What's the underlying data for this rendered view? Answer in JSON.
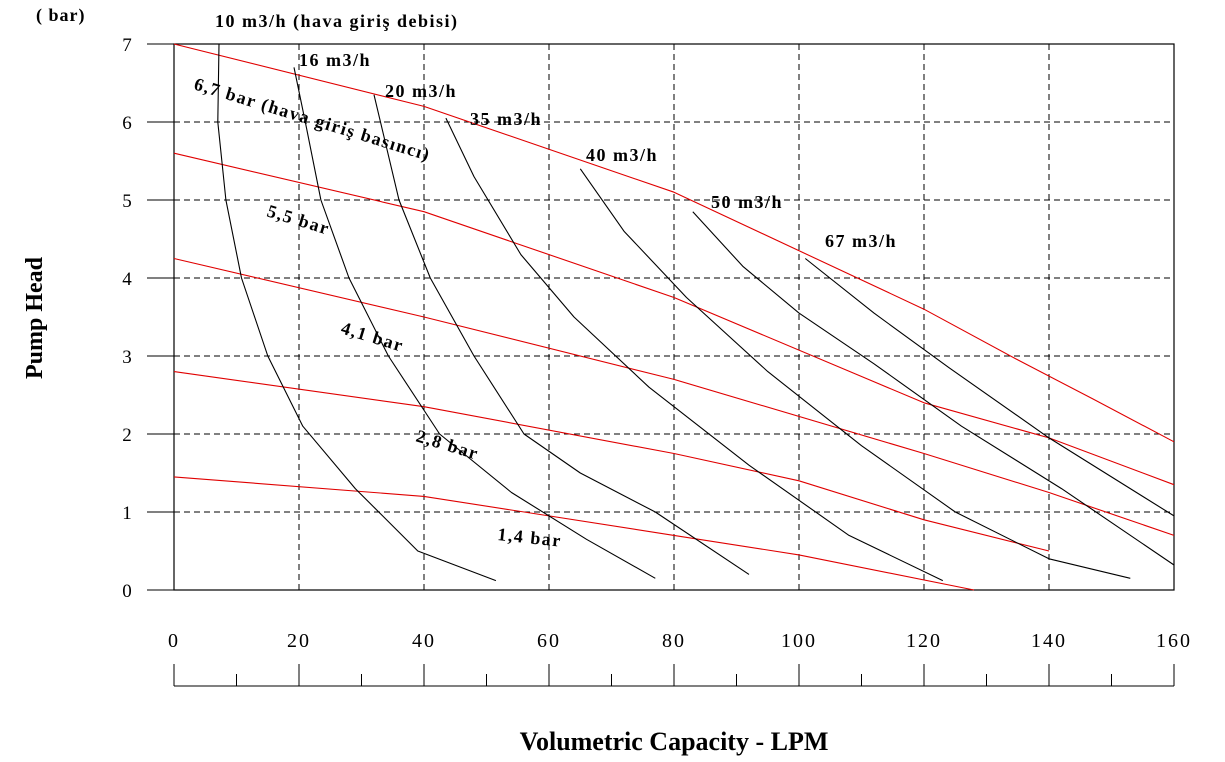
{
  "chart_data": {
    "type": "line",
    "unit_label": "( bar)",
    "ylabel": "Pump Head",
    "xlabel": "Volumetric Capacity - LPM",
    "xlim": [
      0,
      160
    ],
    "ylim": [
      0,
      7
    ],
    "x_ticks": [
      "0",
      "20",
      "40",
      "60",
      "80",
      "100",
      "120",
      "140",
      "160"
    ],
    "y_ticks": [
      "0",
      "1",
      "2",
      "3",
      "4",
      "5",
      "6",
      "7"
    ],
    "grid": true,
    "air_flow_curves": [
      {
        "name": "10 m3/h (hava giriş debisi)",
        "color": "#000000",
        "points": [
          [
            7.2,
            7
          ],
          [
            7.0,
            6
          ],
          [
            8.3,
            5
          ],
          [
            10.8,
            4
          ],
          [
            15,
            3
          ],
          [
            20.6,
            2.1
          ],
          [
            29,
            1.3
          ],
          [
            39,
            0.5
          ],
          [
            51.5,
            0.12
          ]
        ]
      },
      {
        "name": "16 m3/h",
        "color": "#000000",
        "points": [
          [
            19.2,
            6.7
          ],
          [
            21,
            6
          ],
          [
            23.5,
            5
          ],
          [
            28,
            4
          ],
          [
            34.3,
            3
          ],
          [
            42.5,
            2
          ],
          [
            54,
            1.25
          ],
          [
            66,
            0.65
          ],
          [
            77,
            0.15
          ]
        ]
      },
      {
        "name": "20 m3/h",
        "color": "#000000",
        "points": [
          [
            32,
            6.35
          ],
          [
            36,
            5
          ],
          [
            41,
            4
          ],
          [
            48,
            3
          ],
          [
            56,
            2
          ],
          [
            65,
            1.5
          ],
          [
            77,
            1
          ],
          [
            92,
            0.2
          ]
        ]
      },
      {
        "name": "35 m3/h",
        "color": "#000000",
        "points": [
          [
            43.5,
            6.05
          ],
          [
            48,
            5.3
          ],
          [
            55.5,
            4.3
          ],
          [
            64,
            3.5
          ],
          [
            76,
            2.6
          ],
          [
            92,
            1.6
          ],
          [
            108,
            0.7
          ],
          [
            123,
            0.12
          ]
        ]
      },
      {
        "name": "40 m3/h",
        "color": "#000000",
        "points": [
          [
            65,
            5.4
          ],
          [
            72,
            4.6
          ],
          [
            82,
            3.75
          ],
          [
            95,
            2.8
          ],
          [
            110,
            1.85
          ],
          [
            125,
            1.0
          ],
          [
            140,
            0.4
          ],
          [
            153,
            0.15
          ]
        ]
      },
      {
        "name": "50 m3/h",
        "color": "#000000",
        "points": [
          [
            83,
            4.85
          ],
          [
            91,
            4.15
          ],
          [
            100,
            3.55
          ],
          [
            112,
            2.9
          ],
          [
            126,
            2.1
          ],
          [
            142,
            1.3
          ],
          [
            160,
            0.32
          ]
        ]
      },
      {
        "name": "67 m3/h",
        "color": "#000000",
        "points": [
          [
            101,
            4.25
          ],
          [
            112,
            3.55
          ],
          [
            124,
            2.85
          ],
          [
            140,
            1.95
          ],
          [
            160,
            0.95
          ]
        ]
      }
    ],
    "air_pressure_curves": [
      {
        "name": "6,7 bar (hava giriş basıncı)",
        "color": "#e00000",
        "points": [
          [
            0,
            7.0
          ],
          [
            40,
            6.2
          ],
          [
            80,
            5.1
          ],
          [
            120,
            3.6
          ],
          [
            135,
            2.95
          ],
          [
            147,
            2.45
          ],
          [
            160,
            1.9
          ]
        ]
      },
      {
        "name": "5,5 bar",
        "color": "#e00000",
        "points": [
          [
            0,
            5.6
          ],
          [
            40,
            4.85
          ],
          [
            80,
            3.75
          ],
          [
            120,
            2.4
          ],
          [
            140,
            1.95
          ],
          [
            160,
            1.35
          ]
        ]
      },
      {
        "name": "4,1 bar",
        "color": "#e00000",
        "points": [
          [
            0,
            4.25
          ],
          [
            40,
            3.5
          ],
          [
            80,
            2.7
          ],
          [
            120,
            1.75
          ],
          [
            140,
            1.25
          ],
          [
            160,
            0.7
          ]
        ]
      },
      {
        "name": "2,8 bar",
        "color": "#e00000",
        "points": [
          [
            0,
            2.8
          ],
          [
            40,
            2.35
          ],
          [
            80,
            1.75
          ],
          [
            100,
            1.4
          ],
          [
            120,
            0.9
          ],
          [
            140,
            0.5
          ]
        ]
      },
      {
        "name": "1,4 bar",
        "color": "#e00000",
        "points": [
          [
            0,
            1.45
          ],
          [
            40,
            1.2
          ],
          [
            80,
            0.7
          ],
          [
            100,
            0.45
          ],
          [
            128,
            0.0
          ]
        ]
      }
    ],
    "annotations": [
      {
        "text": "10 m3/h (hava giriş debisi)",
        "series": "10 m3/h"
      },
      {
        "text": "16 m3/h",
        "series": "16 m3/h"
      },
      {
        "text": "20 m3/h",
        "series": "20 m3/h"
      },
      {
        "text": "35 m3/h",
        "series": "35 m3/h"
      },
      {
        "text": "40 m3/h",
        "series": "40 m3/h"
      },
      {
        "text": "50 m3/h",
        "series": "50 m3/h"
      },
      {
        "text": "67 m3/h",
        "series": "67 m3/h"
      },
      {
        "text": "6,7 bar (hava giriş basıncı)",
        "series": "6,7 bar"
      },
      {
        "text": "5,5 bar",
        "series": "5,5 bar"
      },
      {
        "text": "4,1 bar",
        "series": "4,1 bar"
      },
      {
        "text": "2,8 bar",
        "series": "2,8 bar"
      },
      {
        "text": "1,4 bar",
        "series": "1,4 bar"
      }
    ]
  }
}
